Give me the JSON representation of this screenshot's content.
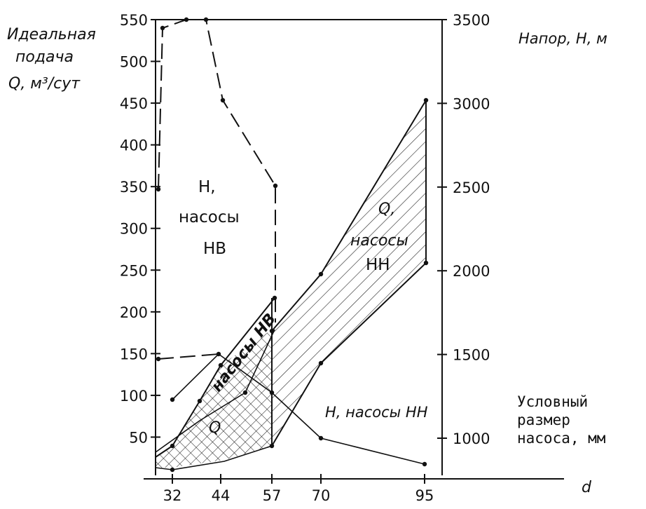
{
  "chart_data": {
    "type": "line",
    "x_ticks": [
      "32",
      "44",
      "57",
      "70",
      "95"
    ],
    "y_left_ticks": [
      "50",
      "100",
      "150",
      "200",
      "250",
      "300",
      "350",
      "400",
      "450",
      "500",
      "550"
    ],
    "y_right_ticks": [
      "1000",
      "1500",
      "2000",
      "2500",
      "3000",
      "3500"
    ],
    "y_left_label": [
      "Идеальная",
      "подача",
      "Q, м³/сут"
    ],
    "y_right_label": "Напор, Н, м",
    "x_label": "d",
    "x_axis_note": [
      "Условный",
      "размер",
      "насоса, мм"
    ],
    "region_labels": {
      "h_nv": [
        "Н,",
        "насосы",
        "НВ"
      ],
      "q_nn": [
        "Q,",
        "насосы",
        "НН"
      ],
      "q_nv_diag": "насосы НВ",
      "q_nv": "Q",
      "h_nn": "Н, насосы НН"
    },
    "series": [
      {
        "role": "H pumps NV (dashed, right axis)",
        "points": [
          [
            29,
            1000
          ],
          [
            29,
            1480
          ],
          [
            29,
            3500
          ],
          [
            34,
            3500
          ],
          [
            38,
            3500
          ],
          [
            44,
            3020
          ],
          [
            57,
            2520
          ],
          [
            57,
            1680
          ]
        ]
      },
      {
        "role": "Q pumps NN lower bound (left axis)",
        "points": [
          [
            57,
            40
          ],
          [
            64,
            90
          ],
          [
            70,
            130
          ],
          [
            95,
            255
          ]
        ]
      },
      {
        "role": "Q pumps NN upper bound (left axis)",
        "points": [
          [
            57,
            175
          ],
          [
            64,
            210
          ],
          [
            70,
            245
          ],
          [
            95,
            450
          ]
        ]
      },
      {
        "role": "Q pumps NV lower bound (left axis)",
        "points": [
          [
            29,
            15
          ],
          [
            32,
            15
          ],
          [
            44,
            18
          ],
          [
            57,
            42
          ]
        ]
      },
      {
        "role": "Q pumps NV upper bound (left axis)",
        "points": [
          [
            29,
            30
          ],
          [
            32,
            40
          ],
          [
            44,
            110
          ],
          [
            57,
            175
          ]
        ]
      },
      {
        "role": "H pumps NN (right axis)",
        "points": [
          [
            32,
            1220
          ],
          [
            44,
            1500
          ],
          [
            57,
            1280
          ],
          [
            70,
            1000
          ],
          [
            95,
            920
          ]
        ]
      },
      {
        "role": "Q pumps NV sub-region (left axis)",
        "points": [
          [
            29,
            15
          ],
          [
            32,
            40
          ],
          [
            38,
            100
          ],
          [
            44,
            140
          ],
          [
            57,
            175
          ],
          [
            57,
            40
          ]
        ]
      }
    ],
    "ylim_left": [
      0,
      550
    ],
    "ylim_right": [
      730,
      3500
    ],
    "grid": false
  }
}
